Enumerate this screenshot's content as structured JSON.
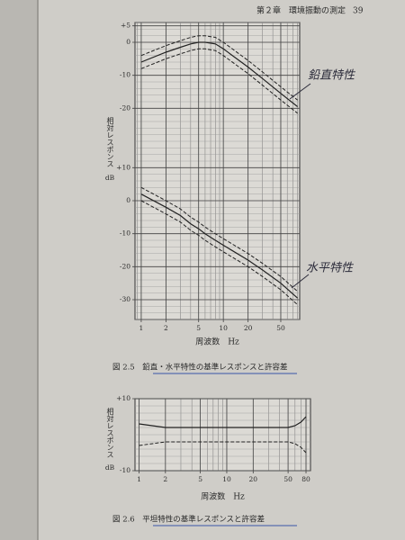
{
  "header": {
    "text": "第２章　環境振動の測定",
    "page": "39"
  },
  "chart_data": [
    {
      "type": "line",
      "caption": "図 2.5　鉛直・水平特性の基準レスポンスと許容差",
      "xlabel": "周波数　Hz",
      "ylabel": "相対レスポンス",
      "yunit": "dB",
      "log_x": true,
      "grid": true,
      "xlim": [
        0.84,
        85
      ],
      "xticks": [
        1,
        2,
        5,
        10,
        20,
        50
      ],
      "ylim": [
        -84,
        6
      ],
      "yticks": [
        {
          "value": 5,
          "label": "+5"
        },
        0,
        -10,
        -20
      ],
      "y2lim": [
        -36,
        54
      ],
      "y2ticks": [
        {
          "value": 10,
          "label": "+10"
        },
        0,
        -10,
        -20,
        -30
      ],
      "x": [
        1,
        2,
        3,
        4,
        5,
        6,
        8,
        10,
        20,
        30,
        50,
        80
      ],
      "series": [
        {
          "color": "#222222",
          "style": "solid",
          "values": [
            -6,
            -3,
            -1.5,
            -0.5,
            0,
            0,
            -0.5,
            -2,
            -7.5,
            -11,
            -15.5,
            -19.5
          ]
        },
        {
          "color": "#222222",
          "style": "dashed",
          "values": [
            -4,
            -1,
            0.5,
            1.5,
            2,
            2,
            1.5,
            0,
            -5.5,
            -9,
            -13.5,
            -17.5
          ]
        },
        {
          "color": "#222222",
          "style": "dashed",
          "values": [
            -8,
            -5,
            -3.5,
            -2.5,
            -2,
            -2,
            -2.5,
            -4,
            -9.5,
            -13,
            -17.5,
            -21.5
          ]
        },
        {
          "color": "#222222",
          "style": "solid",
          "axis": "y2",
          "values": [
            2,
            -2,
            -4.5,
            -7,
            -8.5,
            -10,
            -12,
            -13.5,
            -18,
            -21,
            -25,
            -29.5
          ]
        },
        {
          "color": "#222222",
          "style": "dashed",
          "axis": "y2",
          "values": [
            4,
            0,
            -2.5,
            -5,
            -6.5,
            -8,
            -10,
            -11.5,
            -16,
            -19,
            -23,
            -27.5
          ]
        },
        {
          "color": "#222222",
          "style": "dashed",
          "axis": "y2",
          "values": [
            0,
            -4,
            -6.5,
            -9,
            -10.5,
            -12,
            -14,
            -15.5,
            -20,
            -23,
            -27,
            -31.5
          ]
        }
      ],
      "annotations": [
        {
          "text": "鉛直特性"
        },
        {
          "text": "水平特性"
        }
      ]
    },
    {
      "type": "line",
      "caption": "図 2.6　平坦特性の基準レスポンスと許容差",
      "xlabel": "周波数　Hz",
      "ylabel": "相対レスポンス",
      "yunit": "dB",
      "log_x": true,
      "grid": true,
      "xlim": [
        0.9,
        90
      ],
      "xticks": [
        1,
        2,
        5,
        10,
        20,
        50,
        80
      ],
      "ylim": [
        -10,
        10
      ],
      "yticks": [
        {
          "value": 10,
          "label": "+10"
        },
        {
          "value": -10,
          "label": "-10"
        }
      ],
      "x": [
        1,
        2,
        5,
        10,
        20,
        30,
        50,
        60,
        70,
        80
      ],
      "series": [
        {
          "color": "#222222",
          "style": "solid",
          "values": [
            3,
            2,
            2,
            2,
            2,
            2,
            2,
            2.5,
            3.5,
            5
          ]
        },
        {
          "color": "#222222",
          "style": "dashed",
          "values": [
            -3,
            -2,
            -2,
            -2,
            -2,
            -2,
            -2,
            -2.5,
            -3.5,
            -5
          ]
        }
      ]
    }
  ]
}
